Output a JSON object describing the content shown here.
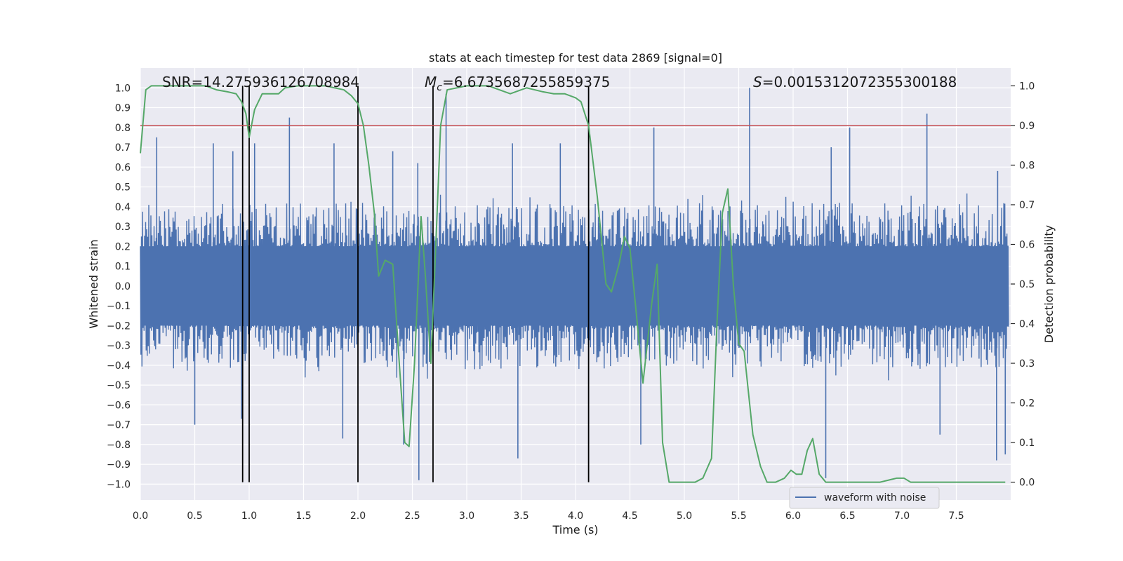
{
  "chart_data": {
    "type": "line",
    "title": "stats at each timestep for test data 2869 [signal=0]",
    "xlabel": "Time (s)",
    "ylabel_left": "Whitened strain",
    "ylabel_right": "Detection probability",
    "xlim": [
      0.0,
      8.0
    ],
    "ylim_left": [
      -1.08,
      1.1
    ],
    "ylim_right": [
      -0.045,
      1.045
    ],
    "x_ticks": [
      0.0,
      0.5,
      1.0,
      1.5,
      2.0,
      2.5,
      3.0,
      3.5,
      4.0,
      4.5,
      5.0,
      5.5,
      6.0,
      6.5,
      7.0,
      7.5
    ],
    "x_tick_labels": [
      "0.0",
      "0.5",
      "1.0",
      "1.5",
      "2.0",
      "2.5",
      "3.0",
      "3.5",
      "4.0",
      "4.5",
      "5.0",
      "5.5",
      "6.0",
      "6.5",
      "7.0",
      "7.5"
    ],
    "y_left_ticks": [
      -1.0,
      -0.9,
      -0.8,
      -0.7,
      -0.6,
      -0.5,
      -0.4,
      -0.3,
      -0.2,
      -0.1,
      0.0,
      0.1,
      0.2,
      0.3,
      0.4,
      0.5,
      0.6,
      0.7,
      0.8,
      0.9,
      1.0
    ],
    "y_left_tick_labels": [
      "−1.0",
      "−0.9",
      "−0.8",
      "−0.7",
      "−0.6",
      "−0.5",
      "−0.4",
      "−0.3",
      "−0.2",
      "−0.1",
      "0.0",
      "0.1",
      "0.2",
      "0.3",
      "0.4",
      "0.5",
      "0.6",
      "0.7",
      "0.8",
      "0.9",
      "1.0"
    ],
    "y_right_ticks": [
      0.0,
      0.1,
      0.2,
      0.3,
      0.4,
      0.5,
      0.6,
      0.7,
      0.8,
      0.9,
      1.0
    ],
    "y_right_tick_labels": [
      "0.0",
      "0.1",
      "0.2",
      "0.3",
      "0.4",
      "0.5",
      "0.6",
      "0.7",
      "0.8",
      "0.9",
      "1.0"
    ],
    "grid": true,
    "legend": {
      "position": "lower-right",
      "entries": [
        {
          "label": "waveform with noise",
          "color": "#4c72b0"
        }
      ]
    },
    "annotations": {
      "snr": "SNR=14.275936126708984",
      "mc_symbol": "M",
      "mc_sub": "c",
      "mc_value": "=6.6735687255859375",
      "s_symbol": "S",
      "s_value": "=0.0015312072355300188"
    },
    "threshold": {
      "axis": "right",
      "value": 0.9,
      "color": "#c44e52"
    },
    "vertical_lines_x": [
      0.94,
      1.0,
      2.0,
      2.69,
      4.12
    ],
    "waveform": {
      "name": "waveform with noise",
      "color": "#4c72b0",
      "axis": "left",
      "x_range": [
        0.0,
        7.98
      ],
      "dense_envelope": [
        -0.2,
        0.2
      ],
      "spikes": [
        {
          "x": 0.15,
          "y": 0.75
        },
        {
          "x": 0.67,
          "y": 0.72
        },
        {
          "x": 0.85,
          "y": 0.68
        },
        {
          "x": 1.05,
          "y": 0.72
        },
        {
          "x": 1.37,
          "y": 0.85
        },
        {
          "x": 1.78,
          "y": 0.72
        },
        {
          "x": 2.32,
          "y": 0.68
        },
        {
          "x": 2.55,
          "y": 0.62
        },
        {
          "x": 2.81,
          "y": 0.97
        },
        {
          "x": 3.42,
          "y": 0.72
        },
        {
          "x": 3.86,
          "y": 0.72
        },
        {
          "x": 4.72,
          "y": 0.8
        },
        {
          "x": 5.6,
          "y": 1.0
        },
        {
          "x": 6.35,
          "y": 0.7
        },
        {
          "x": 6.52,
          "y": 0.8
        },
        {
          "x": 7.23,
          "y": 0.87
        },
        {
          "x": 7.88,
          "y": 0.58
        },
        {
          "x": 0.5,
          "y": -0.7
        },
        {
          "x": 0.93,
          "y": -0.67
        },
        {
          "x": 1.86,
          "y": -0.77
        },
        {
          "x": 2.42,
          "y": -0.8
        },
        {
          "x": 2.56,
          "y": -0.98
        },
        {
          "x": 3.47,
          "y": -0.87
        },
        {
          "x": 4.6,
          "y": -0.8
        },
        {
          "x": 6.3,
          "y": -0.97
        },
        {
          "x": 7.35,
          "y": -0.75
        },
        {
          "x": 7.87,
          "y": -0.88
        },
        {
          "x": 7.95,
          "y": -0.85
        }
      ]
    },
    "detection_probability": {
      "name": "Detection probability",
      "color": "#55a868",
      "axis": "right",
      "x": [
        0.0,
        0.05,
        0.1,
        0.3,
        0.6,
        0.7,
        0.8,
        0.88,
        0.93,
        0.97,
        1.0,
        1.05,
        1.12,
        1.2,
        1.27,
        1.33,
        1.45,
        1.7,
        1.87,
        1.94,
        2.0,
        2.05,
        2.1,
        2.15,
        2.19,
        2.25,
        2.32,
        2.38,
        2.43,
        2.47,
        2.52,
        2.58,
        2.62,
        2.67,
        2.71,
        2.76,
        2.82,
        3.0,
        3.2,
        3.4,
        3.55,
        3.7,
        3.8,
        3.9,
        4.0,
        4.05,
        4.12,
        4.2,
        4.28,
        4.33,
        4.4,
        4.45,
        4.5,
        4.55,
        4.62,
        4.7,
        4.75,
        4.8,
        4.86,
        5.0,
        5.1,
        5.17,
        5.25,
        5.3,
        5.35,
        5.4,
        5.45,
        5.5,
        5.55,
        5.63,
        5.7,
        5.76,
        5.84,
        5.92,
        5.98,
        6.03,
        6.08,
        6.13,
        6.18,
        6.24,
        6.3,
        6.4,
        6.55,
        6.8,
        6.95,
        7.02,
        7.08,
        7.3,
        7.7,
        7.95
      ],
      "y": [
        0.83,
        0.99,
        1.0,
        1.0,
        1.0,
        0.99,
        0.985,
        0.98,
        0.96,
        0.93,
        0.87,
        0.94,
        0.98,
        0.98,
        0.98,
        0.995,
        1.0,
        1.0,
        0.99,
        0.975,
        0.955,
        0.9,
        0.8,
        0.68,
        0.52,
        0.56,
        0.55,
        0.3,
        0.1,
        0.09,
        0.3,
        0.67,
        0.52,
        0.3,
        0.56,
        0.9,
        0.99,
        1.0,
        1.0,
        0.98,
        0.995,
        0.985,
        0.98,
        0.98,
        0.97,
        0.96,
        0.9,
        0.72,
        0.5,
        0.48,
        0.55,
        0.62,
        0.59,
        0.45,
        0.25,
        0.45,
        0.55,
        0.1,
        0.0,
        0.0,
        0.0,
        0.01,
        0.06,
        0.4,
        0.68,
        0.74,
        0.5,
        0.35,
        0.33,
        0.12,
        0.04,
        0.0,
        0.0,
        0.01,
        0.03,
        0.02,
        0.02,
        0.08,
        0.11,
        0.02,
        0.0,
        0.0,
        0.0,
        0.0,
        0.01,
        0.01,
        0.0,
        0.0,
        0.0,
        0.0
      ]
    }
  }
}
